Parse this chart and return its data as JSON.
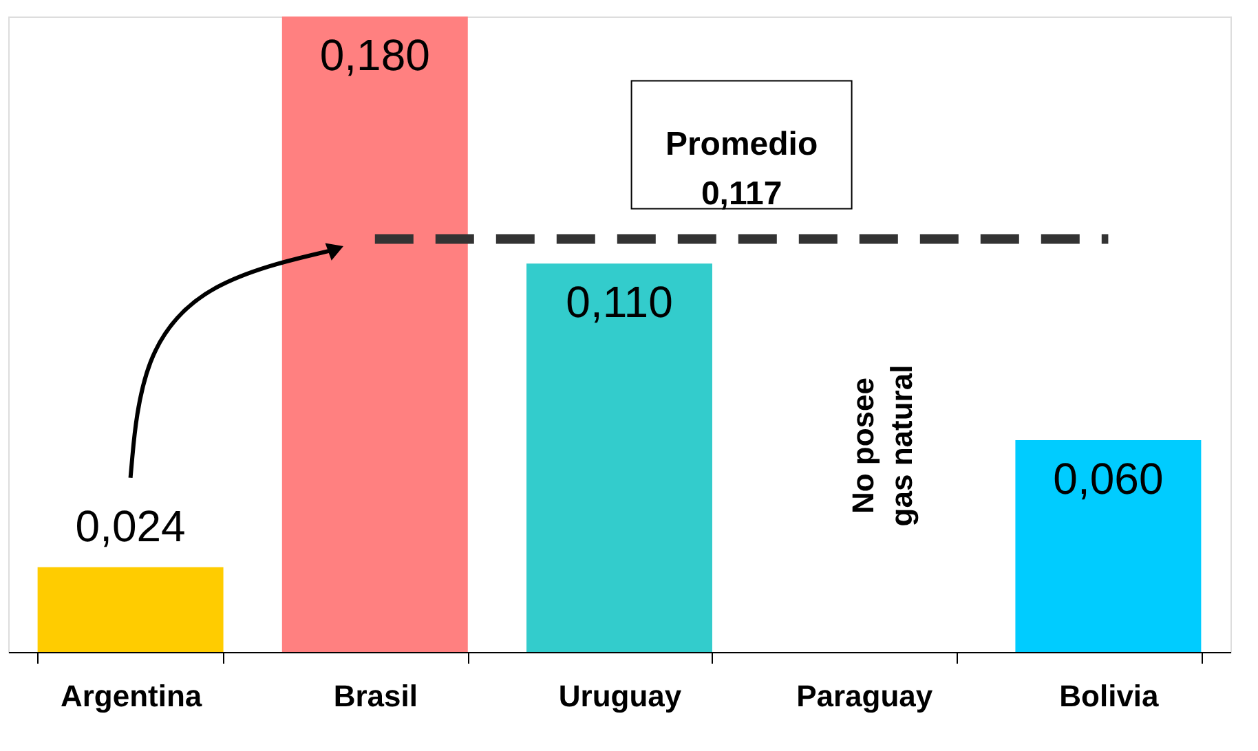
{
  "chart_data": {
    "type": "bar",
    "categories": [
      "Argentina",
      "Brasil",
      "Uruguay",
      "Paraguay",
      "Bolivia"
    ],
    "values": [
      0.024,
      0.18,
      0.11,
      null,
      0.06
    ],
    "colors": [
      "#ffcc00",
      "#ff8080",
      "#33cccc",
      "#ffffff",
      "#00ccff"
    ],
    "value_labels": [
      "0,024",
      "0,180",
      "0,110",
      null,
      "0,060"
    ],
    "ylim": [
      0,
      0.18
    ],
    "tick_labels": "x",
    "grid": false,
    "ref_lines": [
      {
        "axis": "y",
        "value": 0.117,
        "label": "Promedio 0,117",
        "color": "#333333",
        "line_style": "dashed"
      }
    ],
    "annotations": [
      "No posee gas natural"
    ]
  }
}
